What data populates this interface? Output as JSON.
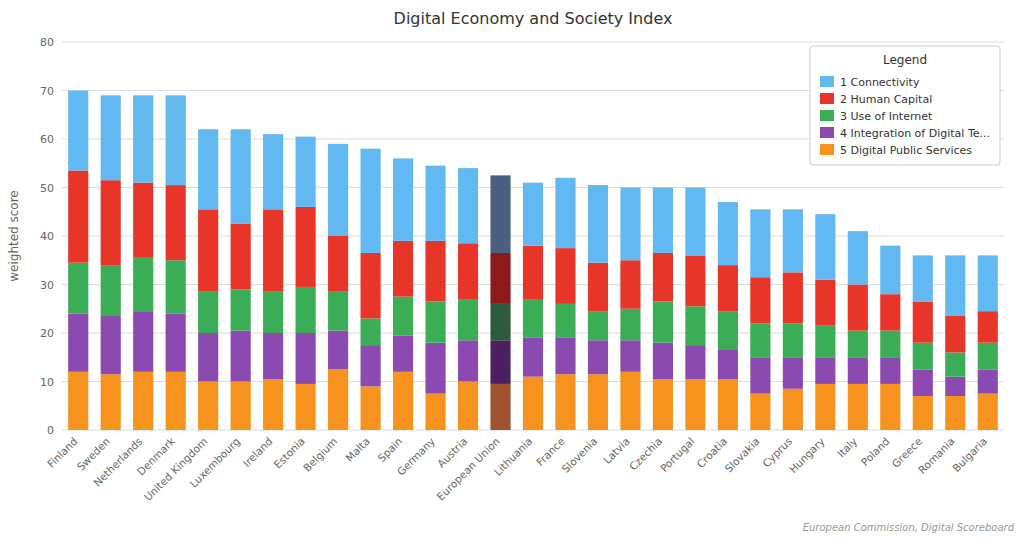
{
  "chart_data": {
    "type": "bar",
    "stacked": true,
    "title": "Digital Economy and Society Index",
    "ylabel": "weighted score",
    "source": "European Commission, Digital Scoreboard",
    "legend_title": "Legend",
    "legend": "top-right",
    "grid": true,
    "ylim": [
      0,
      80
    ],
    "yticks": [
      0,
      10,
      20,
      30,
      40,
      50,
      60,
      70,
      80
    ],
    "categories": [
      "Finland",
      "Sweden",
      "Netherlands",
      "Denmark",
      "United Kingdom",
      "Luxembourg",
      "Ireland",
      "Estonia",
      "Belgium",
      "Malta",
      "Spain",
      "Germany",
      "Austria",
      "European Union",
      "Lithuania",
      "France",
      "Slovenia",
      "Latvia",
      "Czechia",
      "Portugal",
      "Croatia",
      "Slovakia",
      "Cyprus",
      "Hungary",
      "Italy",
      "Poland",
      "Greece",
      "Romania",
      "Bulgaria"
    ],
    "series": [
      {
        "name": "5 Digital Public Services",
        "color": "#F5931E",
        "colors": [
          "#F5931E",
          "#F5931E",
          "#F5931E",
          "#F5931E",
          "#F5931E",
          "#F5931E",
          "#F5931E",
          "#F5931E",
          "#F5931E",
          "#F5931E",
          "#F5931E",
          "#F5931E",
          "#F5931E",
          "#A0522D",
          "#F5931E",
          "#F5931E",
          "#F5931E",
          "#F5931E",
          "#F5931E",
          "#F5931E",
          "#F5931E",
          "#F5931E",
          "#F5931E",
          "#F5931E",
          "#F5931E",
          "#F5931E",
          "#F5931E",
          "#F5931E",
          "#F5931E"
        ],
        "values": [
          12.0,
          11.5,
          12.0,
          12.0,
          10.0,
          10.0,
          10.5,
          9.5,
          12.5,
          9.0,
          12.0,
          7.5,
          10.0,
          9.5,
          11.0,
          11.5,
          11.5,
          12.0,
          10.5,
          10.5,
          10.5,
          7.5,
          8.5,
          9.5,
          9.5,
          9.5,
          7.0,
          7.0,
          7.5
        ]
      },
      {
        "name": "4 Integration of Digital Te...",
        "color": "#8B4AAF",
        "colors": [
          "#8B4AAF",
          "#8B4AAF",
          "#8B4AAF",
          "#8B4AAF",
          "#8B4AAF",
          "#8B4AAF",
          "#8B4AAF",
          "#8B4AAF",
          "#8B4AAF",
          "#8B4AAF",
          "#8B4AAF",
          "#8B4AAF",
          "#8B4AAF",
          "#4A2060",
          "#8B4AAF",
          "#8B4AAF",
          "#8B4AAF",
          "#8B4AAF",
          "#8B4AAF",
          "#8B4AAF",
          "#8B4AAF",
          "#8B4AAF",
          "#8B4AAF",
          "#8B4AAF",
          "#8B4AAF",
          "#8B4AAF",
          "#8B4AAF",
          "#8B4AAF",
          "#8B4AAF"
        ],
        "values": [
          12.0,
          12.0,
          12.5,
          12.0,
          10.0,
          10.5,
          9.5,
          10.5,
          8.0,
          8.5,
          7.5,
          10.5,
          8.5,
          9.0,
          8.0,
          7.5,
          7.0,
          6.5,
          7.5,
          7.0,
          6.0,
          7.5,
          6.5,
          5.5,
          5.5,
          5.5,
          5.5,
          4.0,
          5.0
        ]
      },
      {
        "name": "3 Use of Internet",
        "color": "#3BAD57",
        "colors": [
          "#3BAD57",
          "#3BAD57",
          "#3BAD57",
          "#3BAD57",
          "#3BAD57",
          "#3BAD57",
          "#3BAD57",
          "#3BAD57",
          "#3BAD57",
          "#3BAD57",
          "#3BAD57",
          "#3BAD57",
          "#3BAD57",
          "#2D5A3A",
          "#3BAD57",
          "#3BAD57",
          "#3BAD57",
          "#3BAD57",
          "#3BAD57",
          "#3BAD57",
          "#3BAD57",
          "#3BAD57",
          "#3BAD57",
          "#3BAD57",
          "#3BAD57",
          "#3BAD57",
          "#3BAD57",
          "#3BAD57",
          "#3BAD57"
        ],
        "values": [
          10.5,
          10.5,
          11.0,
          11.0,
          8.5,
          8.5,
          8.5,
          9.5,
          8.0,
          5.5,
          8.0,
          8.5,
          8.5,
          7.5,
          8.0,
          7.0,
          6.0,
          6.5,
          8.5,
          8.0,
          8.0,
          7.0,
          7.0,
          6.5,
          5.5,
          5.5,
          5.5,
          5.0,
          5.5
        ]
      },
      {
        "name": "2 Human Capital",
        "color": "#E8352A",
        "colors": [
          "#E8352A",
          "#E8352A",
          "#E8352A",
          "#E8352A",
          "#E8352A",
          "#E8352A",
          "#E8352A",
          "#E8352A",
          "#E8352A",
          "#E8352A",
          "#E8352A",
          "#E8352A",
          "#E8352A",
          "#8B1A1A",
          "#E8352A",
          "#E8352A",
          "#E8352A",
          "#E8352A",
          "#E8352A",
          "#E8352A",
          "#E8352A",
          "#E8352A",
          "#E8352A",
          "#E8352A",
          "#E8352A",
          "#E8352A",
          "#E8352A",
          "#E8352A",
          "#E8352A"
        ],
        "values": [
          19.0,
          17.5,
          15.5,
          15.5,
          17.0,
          13.5,
          17.0,
          16.5,
          11.5,
          13.5,
          11.5,
          12.5,
          11.5,
          10.5,
          11.0,
          11.5,
          10.0,
          10.0,
          10.0,
          10.5,
          9.5,
          9.5,
          10.5,
          9.5,
          9.5,
          7.5,
          8.5,
          7.5,
          6.5
        ]
      },
      {
        "name": "1 Connectivity",
        "color": "#62B8F0",
        "colors": [
          "#62B8F0",
          "#62B8F0",
          "#62B8F0",
          "#62B8F0",
          "#62B8F0",
          "#62B8F0",
          "#62B8F0",
          "#62B8F0",
          "#62B8F0",
          "#62B8F0",
          "#62B8F0",
          "#62B8F0",
          "#62B8F0",
          "#4A6080",
          "#62B8F0",
          "#62B8F0",
          "#62B8F0",
          "#62B8F0",
          "#62B8F0",
          "#62B8F0",
          "#62B8F0",
          "#62B8F0",
          "#62B8F0",
          "#62B8F0",
          "#62B8F0",
          "#62B8F0",
          "#62B8F0",
          "#62B8F0",
          "#62B8F0"
        ],
        "values": [
          16.5,
          17.5,
          18.0,
          18.5,
          16.5,
          19.5,
          15.5,
          14.5,
          19.0,
          21.5,
          17.0,
          15.5,
          15.5,
          16.0,
          13.0,
          14.5,
          16.0,
          15.0,
          13.5,
          14.0,
          13.0,
          14.0,
          13.0,
          13.5,
          11.0,
          10.0,
          9.5,
          12.5,
          11.5
        ]
      }
    ]
  }
}
